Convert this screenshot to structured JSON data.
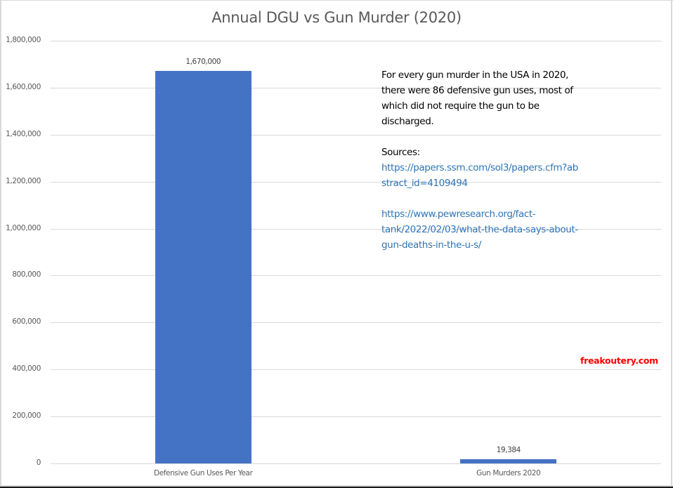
{
  "chart_data": {
    "type": "bar",
    "title": "Annual DGU vs Gun Murder (2020)",
    "categories": [
      "Defensive Gun Uses Per Year",
      "Gun Murders 2020"
    ],
    "values": [
      1670000,
      19384
    ],
    "data_labels": [
      "1,670,000",
      "19,384"
    ],
    "xlabel": "",
    "ylabel": "",
    "ylim": [
      0,
      1800000
    ],
    "yticks": [
      0,
      200000,
      400000,
      600000,
      800000,
      1000000,
      1200000,
      1400000,
      1600000,
      1800000
    ],
    "ytick_labels": [
      "0",
      "200,000",
      "400,000",
      "600,000",
      "800,000",
      "1,000,000",
      "1,200,000",
      "1,400,000",
      "1,600,000",
      "1,800,000"
    ],
    "grid": true,
    "legend": "none",
    "bar_color": "#4472C4",
    "annotations": [
      "For every gun murder in the USA in 2020, there were 86 defensive gun uses, most of which did not require the gun to be discharged.",
      "Sources:",
      "https://papers.ssrn.com/sol3/papers.cfm?abstract_id=4109494",
      "https://www.pewresearch.org/fact-tank/2022/02/03/what-the-data-says-about-gun-deaths-in-the-u-s/",
      "freakoutery.com"
    ]
  },
  "title": "Annual DGU vs Gun Murder (2020)",
  "yaxis": {
    "ticks": [
      {
        "label": "1,800,000",
        "value": 1800000
      },
      {
        "label": "1,600,000",
        "value": 1600000
      },
      {
        "label": "1,400,000",
        "value": 1400000
      },
      {
        "label": "1,200,000",
        "value": 1200000
      },
      {
        "label": "1,000,000",
        "value": 1000000
      },
      {
        "label": "800,000",
        "value": 800000
      },
      {
        "label": "600,000",
        "value": 600000
      },
      {
        "label": "400,000",
        "value": 400000
      },
      {
        "label": "200,000",
        "value": 200000
      },
      {
        "label": "0",
        "value": 0
      }
    ]
  },
  "bars": [
    {
      "category": "Defensive Gun Uses Per Year",
      "value": 1670000,
      "label": "1,670,000"
    },
    {
      "category": "Gun Murders 2020",
      "value": 19384,
      "label": "19,384"
    }
  ],
  "annotation": {
    "lines": [
      "For every gun murder in the USA in 2020,",
      "there were 86 defensive gun uses, most of",
      "which did not require the gun to be",
      "discharged."
    ],
    "sources_label": "Sources:",
    "source1_lines": [
      "https://papers.ssrn.com/sol3/papers.cfm?ab",
      "stract_id=4109494"
    ],
    "source2_lines": [
      "https://www.pewresearch.org/fact-",
      "tank/2022/02/03/what-the-data-says-about-",
      "gun-deaths-in-the-u-s/"
    ]
  },
  "watermark": "freakoutery.com",
  "colors": {
    "bar": "#4472C4",
    "link": "#2E75B6",
    "watermark": "#FF0000",
    "gridline": "#D9D9D9",
    "axis_text": "#595959"
  }
}
